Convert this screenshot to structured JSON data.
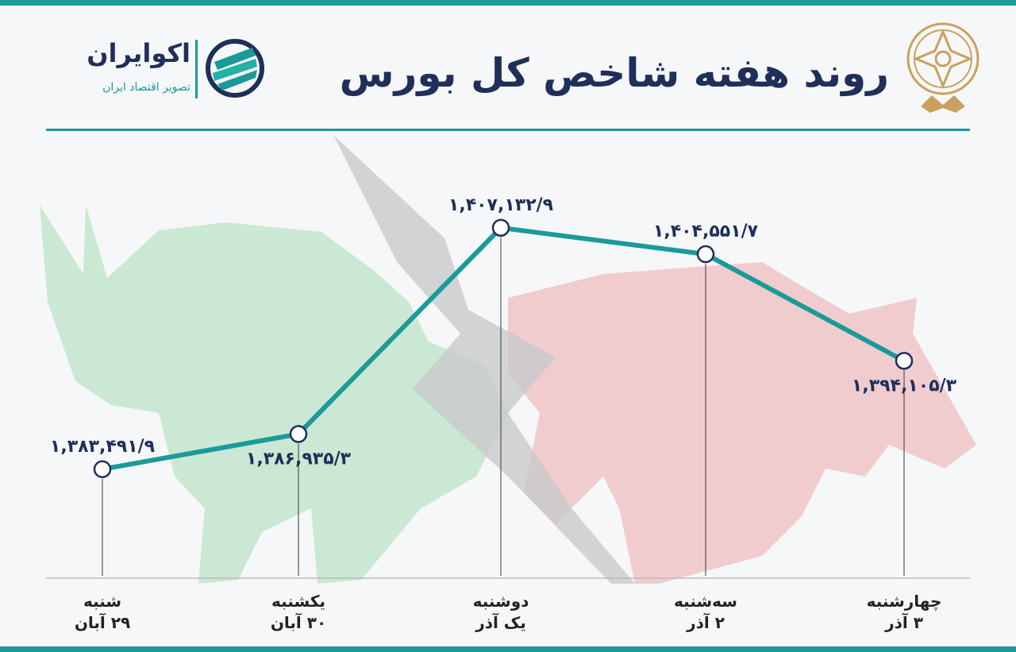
{
  "title": "روند هفته شاخص کل بورس",
  "brand": {
    "name": "اکوایران",
    "tagline": "تصویر اقتصاد ایران",
    "logo_icon": "ecoiran-logo-icon"
  },
  "emblem_icon": "tehran-stock-exchange-emblem-icon",
  "colors": {
    "line": "#1b9a9a",
    "label": "#1f2f5a",
    "bull": "#bfe3c9",
    "bear": "#f0c0c3"
  },
  "chart_data": {
    "type": "line",
    "categories": [
      {
        "day": "شنبه",
        "date": "۲۹ آبان"
      },
      {
        "day": "یکشنبه",
        "date": "۳۰ آبان"
      },
      {
        "day": "دوشنبه",
        "date": "یک آذر"
      },
      {
        "day": "سه‌شنبه",
        "date": "۲ آذر"
      },
      {
        "day": "چهارشنبه",
        "date": "۳ آذر"
      }
    ],
    "values": [
      1383491.9,
      1386935.3,
      1407132.9,
      1404551.7,
      1394105.3
    ],
    "value_labels": [
      "۱,۳۸۳,۴۹۱/۹",
      "۱,۳۸۶,۹۳۵/۳",
      "۱,۴۰۷,۱۳۲/۹",
      "۱,۴۰۴,۵۵۱/۷",
      "۱,۳۹۴,۱۰۵/۳"
    ],
    "label_position": [
      "above",
      "below",
      "above",
      "above",
      "below"
    ],
    "ylim": [
      1375000,
      1410000
    ],
    "grid": false,
    "legend": "none"
  }
}
